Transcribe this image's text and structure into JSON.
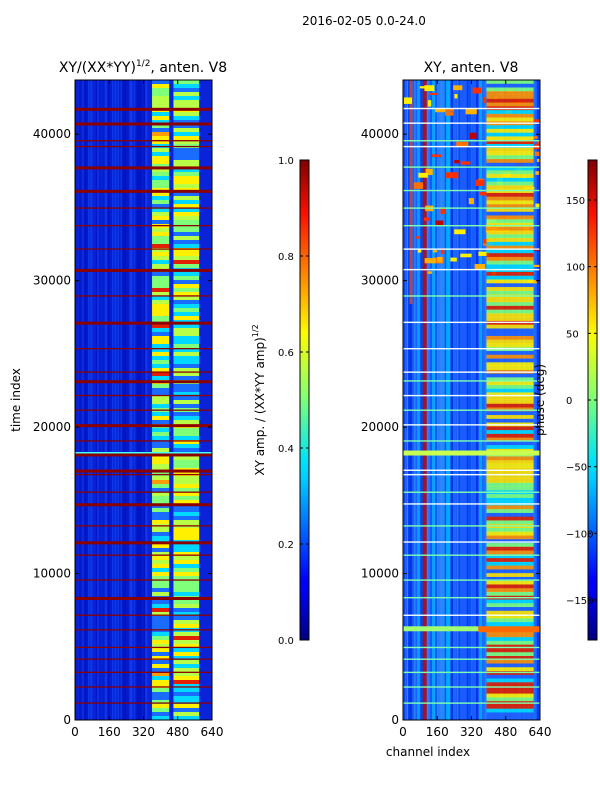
{
  "chart_data": [
    {
      "type": "heatmap",
      "suptitle": "2016-02-05 0.0-24.0",
      "title": "XY/(XX*YY)",
      "title_superscript": "1/2",
      "title_suffix": ", anten. V8",
      "xlabel": "",
      "ylabel": "time index",
      "xlim": [
        0,
        640
      ],
      "ylim": [
        0,
        43700
      ],
      "xticks": [
        0,
        160,
        320,
        480,
        640
      ],
      "yticks": [
        0,
        10000,
        20000,
        30000,
        40000
      ],
      "colorbar": {
        "label": "XY amp. / (XX*YY amp)",
        "label_superscript": "1/2",
        "range": [
          0.0,
          1.0
        ],
        "ticks": [
          "0.0",
          "0.2",
          "0.4",
          "0.6",
          "0.8",
          "1.0"
        ],
        "colormap": "jet"
      }
    },
    {
      "type": "heatmap",
      "title": "XY, anten. V8",
      "xlabel": "channel index",
      "ylabel": "",
      "xlim": [
        0,
        640
      ],
      "ylim": [
        0,
        43700
      ],
      "xticks": [
        0,
        160,
        320,
        480,
        640
      ],
      "yticks": [
        0,
        10000,
        20000,
        30000,
        40000
      ],
      "colorbar": {
        "label": "phase (deg)",
        "range": [
          -180,
          180
        ],
        "ticks": [
          "−150",
          "−100",
          "−50",
          "0",
          "50",
          "100",
          "150"
        ],
        "tick_values": [
          -150,
          -100,
          -50,
          0,
          50,
          100,
          150
        ],
        "colormap": "jet"
      }
    }
  ]
}
